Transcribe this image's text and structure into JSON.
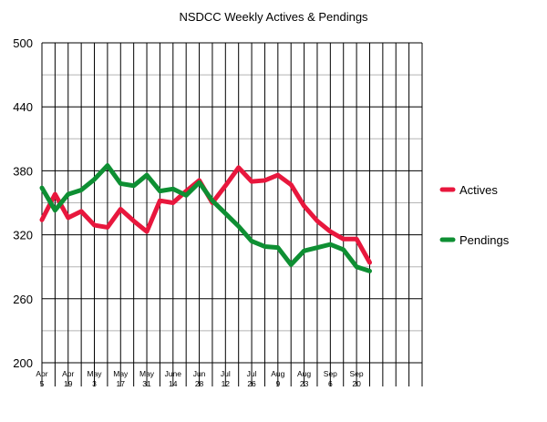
{
  "chart_data": {
    "type": "line",
    "title": "NSDCC Weekly Actives & Pendings",
    "xlabel": "",
    "ylabel": "",
    "ylim": [
      200,
      500
    ],
    "yticks": [
      200,
      260,
      320,
      380,
      440,
      500
    ],
    "grid": true,
    "legend_position": "right",
    "x_tick_labels": [
      [
        "Apr",
        "5"
      ],
      [
        "Apr",
        "19"
      ],
      [
        "May",
        "3"
      ],
      [
        "May",
        "17"
      ],
      [
        "May",
        "31"
      ],
      [
        "June",
        "14"
      ],
      [
        "Jun",
        "28"
      ],
      [
        "Jul",
        "12"
      ],
      [
        "Jul",
        "26"
      ],
      [
        "Aug",
        "9"
      ],
      [
        "Aug",
        "23"
      ],
      [
        "Sep",
        "6"
      ],
      [
        "Sep",
        "20"
      ]
    ],
    "week_slots": 29,
    "series": [
      {
        "name": "Actives",
        "color": "#e8173d",
        "values": [
          334,
          358,
          336,
          342,
          329,
          327,
          344,
          333,
          323,
          352,
          350,
          361,
          371,
          350,
          366,
          383,
          370,
          371,
          376,
          367,
          347,
          333,
          323,
          316,
          316,
          294
        ]
      },
      {
        "name": "Pendings",
        "color": "#0e8f33",
        "values": [
          364,
          343,
          358,
          362,
          372,
          385,
          368,
          366,
          376,
          361,
          363,
          357,
          369,
          352,
          340,
          328,
          314,
          309,
          308,
          292,
          305,
          308,
          311,
          306,
          290,
          286
        ]
      }
    ]
  }
}
